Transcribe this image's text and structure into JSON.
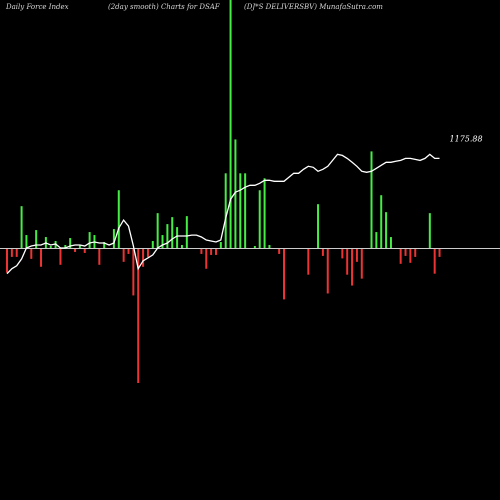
{
  "header": {
    "left": "Daily Force  Index",
    "center": "(2day smooth) Charts for DSAF",
    "right": "(DJ*S DELIVERSBV) MunafaSutra.com"
  },
  "colors": {
    "background": "#000000",
    "positive_bar": "#44ee44",
    "negative_bar": "#ee3333",
    "zero_line": "#cccccc",
    "smooth_line": "#ffffff"
  },
  "chart_data": {
    "type": "bar",
    "title": "",
    "xlabel": "",
    "ylabel": "",
    "ylim": [
      -1085,
      1992
    ],
    "grid": false,
    "legend": "none",
    "last_value_label": "1175.88",
    "series": [
      {
        "type": "bar",
        "values": [
          -192,
          -64,
          -64,
          336,
          104,
          -80,
          144,
          -144,
          88,
          16,
          56,
          -128,
          24,
          80,
          -24,
          24,
          -32,
          128,
          104,
          -128,
          48,
          0,
          152,
          464,
          -104,
          -40,
          -376,
          -1085,
          -144,
          -64,
          56,
          280,
          104,
          192,
          248,
          168,
          24,
          256,
          0,
          0,
          -40,
          -160,
          -48,
          -48,
          48,
          600,
          1992,
          872,
          600,
          600,
          0,
          16,
          464,
          560,
          24,
          0,
          -40,
          -408,
          0,
          0,
          0,
          0,
          -208,
          0,
          352,
          -56,
          -360,
          0,
          0,
          -76,
          -208,
          -296,
          -104,
          -240,
          0,
          776,
          128,
          424,
          288,
          88,
          0,
          -120,
          -56,
          -112,
          -64,
          0,
          0,
          280,
          -200,
          -64
        ],
        "smooth": [
          -208,
          -168,
          -144,
          -88,
          0,
          16,
          24,
          24,
          40,
          24,
          32,
          0,
          0,
          16,
          24,
          24,
          16,
          40,
          48,
          40,
          40,
          24,
          40,
          160,
          224,
          176,
          16,
          -168,
          -104,
          -80,
          -56,
          0,
          24,
          40,
          72,
          96,
          96,
          96,
          104,
          104,
          88,
          64,
          56,
          48,
          64,
          240,
          392,
          448,
          464,
          488,
          504,
          504,
          520,
          544,
          544,
          536,
          536,
          536,
          568,
          600,
          600,
          632,
          656,
          648,
          616,
          632,
          656,
          704,
          752,
          744,
          720,
          688,
          656,
          616,
          608,
          616,
          640,
          664,
          688,
          688,
          696,
          704,
          720,
          720,
          712,
          704,
          720,
          752,
          720,
          720
        ]
      }
    ]
  }
}
